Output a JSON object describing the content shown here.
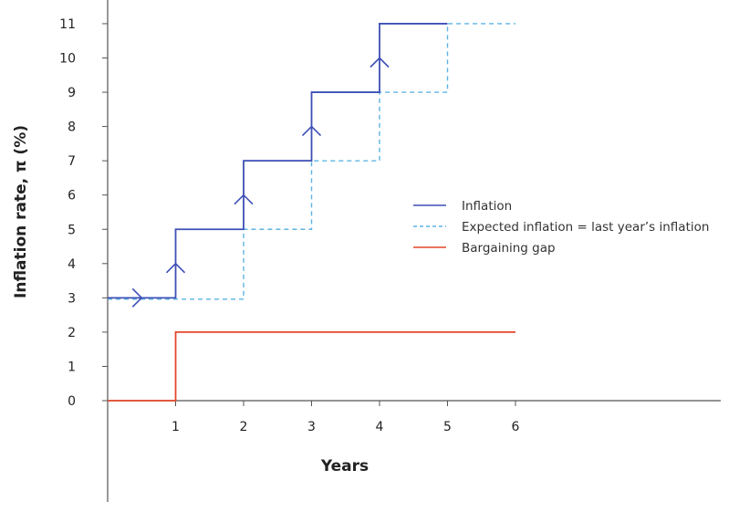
{
  "chart_data": {
    "type": "line",
    "xlabel": "Years",
    "ylabel": "Inflation rate, π (%)",
    "xlim": [
      0,
      9
    ],
    "ylim": [
      0,
      11
    ],
    "x_ticks": [
      "1",
      "2",
      "3",
      "4",
      "5",
      "6"
    ],
    "y_ticks": [
      "0",
      "1",
      "2",
      "3",
      "4",
      "5",
      "6",
      "7",
      "8",
      "9",
      "10",
      "11"
    ],
    "grid": false,
    "legend_position": "right",
    "series": [
      {
        "name": "Inflation",
        "style": "solid",
        "color": "#3d4fb5",
        "points": [
          [
            0,
            3
          ],
          [
            1,
            3
          ],
          [
            1,
            5
          ],
          [
            2,
            5
          ],
          [
            2,
            7
          ],
          [
            3,
            7
          ],
          [
            3,
            9
          ],
          [
            4,
            9
          ],
          [
            4,
            11
          ],
          [
            5,
            11
          ]
        ],
        "arrows": [
          {
            "x": 0.5,
            "y": 3,
            "dir": "right"
          },
          {
            "x": 1,
            "y": 4,
            "dir": "up"
          },
          {
            "x": 2,
            "y": 6,
            "dir": "up"
          },
          {
            "x": 3,
            "y": 8,
            "dir": "up"
          },
          {
            "x": 4,
            "y": 10,
            "dir": "up"
          }
        ]
      },
      {
        "name": "Expected inflation = last year’s inflation",
        "style": "dashed",
        "color": "#5bb4e5",
        "points": [
          [
            0,
            3
          ],
          [
            2,
            3
          ],
          [
            2,
            5
          ],
          [
            3,
            5
          ],
          [
            3,
            7
          ],
          [
            4,
            7
          ],
          [
            4,
            9
          ],
          [
            5,
            9
          ],
          [
            5,
            11
          ],
          [
            6,
            11
          ]
        ]
      },
      {
        "name": "Bargaining gap",
        "style": "solid",
        "color": "#e4472a",
        "points": [
          [
            0,
            0
          ],
          [
            1,
            0
          ],
          [
            1,
            2
          ],
          [
            6,
            2
          ]
        ]
      }
    ]
  }
}
